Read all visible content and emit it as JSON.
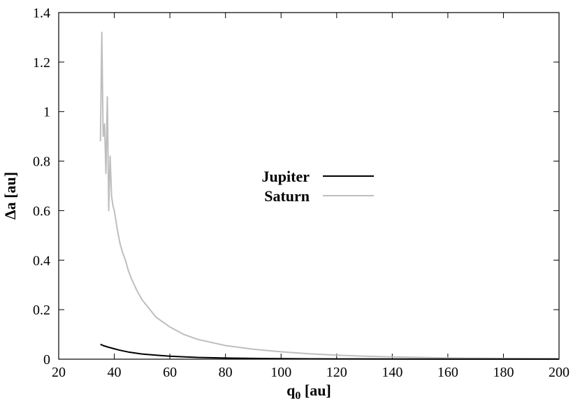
{
  "chart_data": {
    "type": "line",
    "title": "",
    "xlabel": "q",
    "xlabel_sub": "0",
    "xlabel_unit": " [au]",
    "ylabel": "Δa [au]",
    "xlim": [
      20,
      200
    ],
    "ylim": [
      0,
      1.4
    ],
    "xticks": [
      20,
      40,
      60,
      80,
      100,
      120,
      140,
      160,
      180,
      200
    ],
    "yticks": [
      0,
      0.2,
      0.4,
      0.6,
      0.8,
      1,
      1.2,
      1.4
    ],
    "grid": false,
    "legend_position": "center",
    "series": [
      {
        "name": "Jupiter",
        "color": "#000000",
        "x": [
          35,
          36,
          38,
          40,
          42,
          45,
          50,
          55,
          60,
          70,
          80,
          90,
          100,
          110,
          120,
          140,
          160,
          180,
          200
        ],
        "y": [
          0.06,
          0.055,
          0.048,
          0.042,
          0.036,
          0.029,
          0.021,
          0.016,
          0.012,
          0.007,
          0.0045,
          0.003,
          0.002,
          0.0015,
          0.001,
          0.0006,
          0.0004,
          0.0003,
          0.0002
        ]
      },
      {
        "name": "Saturn",
        "color": "#bebebe",
        "x": [
          35,
          35.5,
          36,
          36.5,
          37,
          37.5,
          38,
          38.5,
          39,
          39.5,
          40,
          41,
          42,
          43,
          44,
          45,
          46,
          48,
          50,
          55,
          60,
          65,
          70,
          80,
          90,
          100,
          110,
          120,
          130,
          140,
          150,
          160,
          180,
          200
        ],
        "y": [
          0.88,
          1.32,
          0.9,
          0.95,
          0.75,
          1.06,
          0.6,
          0.82,
          0.66,
          0.62,
          0.6,
          0.53,
          0.47,
          0.43,
          0.4,
          0.36,
          0.33,
          0.28,
          0.24,
          0.17,
          0.13,
          0.1,
          0.08,
          0.055,
          0.04,
          0.03,
          0.022,
          0.016,
          0.012,
          0.009,
          0.007,
          0.005,
          0.003,
          0.002
        ]
      }
    ]
  }
}
